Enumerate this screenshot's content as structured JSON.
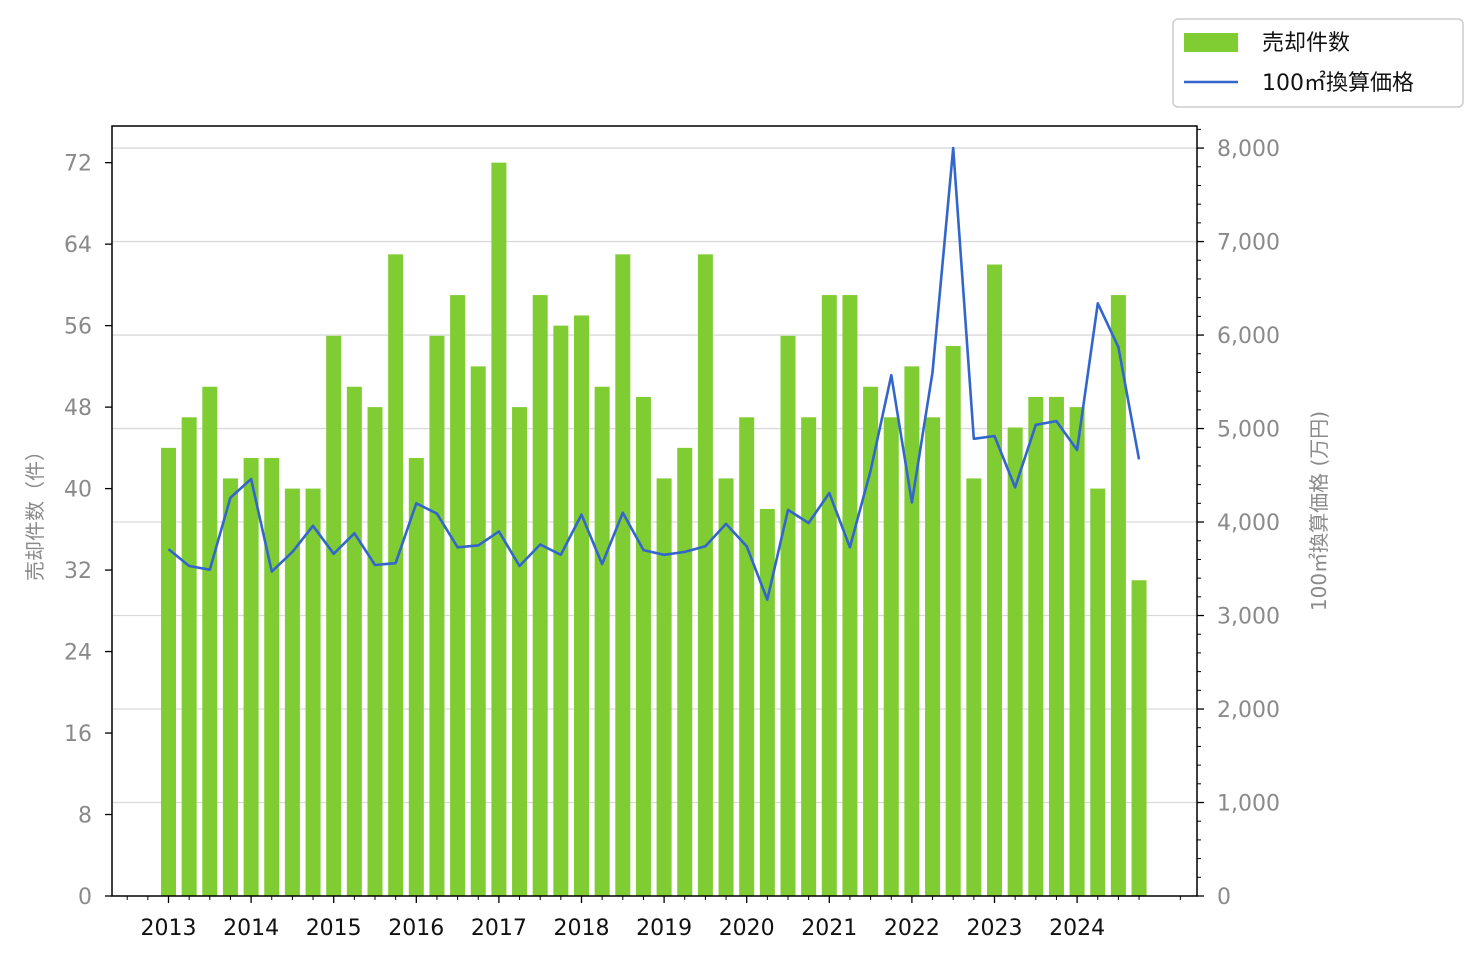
{
  "chart_data": {
    "type": "bar",
    "x_tick_labels": [
      "2013",
      "2014",
      "2015",
      "2016",
      "2017",
      "2018",
      "2019",
      "2020",
      "2021",
      "2022",
      "2023",
      "2024"
    ],
    "series": [
      {
        "name": "売却件数",
        "type": "bar",
        "axis": "left",
        "color": "#80cc33",
        "values": [
          44,
          47,
          50,
          41,
          43,
          43,
          40,
          40,
          55,
          50,
          48,
          63,
          43,
          55,
          59,
          52,
          72,
          48,
          59,
          56,
          57,
          50,
          63,
          49,
          41,
          44,
          63,
          41,
          47,
          38,
          55,
          47,
          59,
          59,
          50,
          47,
          52,
          47,
          54,
          41,
          62,
          46,
          49,
          49,
          48,
          40,
          59,
          31
        ]
      },
      {
        "name": "100㎡換算価格",
        "type": "line",
        "axis": "right",
        "color": "#3366cc",
        "values": [
          3710,
          3530,
          3490,
          4260,
          4460,
          3470,
          3680,
          3960,
          3660,
          3880,
          3540,
          3560,
          4200,
          4090,
          3730,
          3750,
          3900,
          3530,
          3760,
          3650,
          4080,
          3550,
          4100,
          3700,
          3650,
          3680,
          3740,
          3980,
          3740,
          3170,
          4130,
          3990,
          4310,
          3730,
          4550,
          5570,
          4210,
          5600,
          8000,
          4890,
          4920,
          4370,
          5040,
          5080,
          4770,
          6340,
          5870,
          4670
        ]
      }
    ],
    "periods_per_year": 4,
    "y_left": {
      "label": "売却件数（件）",
      "ticks": [
        0,
        8,
        16,
        24,
        32,
        40,
        48,
        56,
        64,
        72
      ],
      "min": 0,
      "max": 75.6
    },
    "y_right": {
      "label": "100㎡換算価格 (万円)",
      "ticks": [
        "0",
        "1,000",
        "2,000",
        "3,000",
        "4,000",
        "5,000",
        "6,000",
        "7,000",
        "8,000"
      ],
      "min": 0,
      "max": 8236
    },
    "grid": "horizontal (right-axis ticks)",
    "legend_placement": "top-right, outside plot"
  },
  "legend": {
    "bar_label": "売却件数",
    "line_label": "100㎡換算価格"
  },
  "axes": {
    "left_title": "売却件数（件）",
    "right_title": "100㎡換算価格 (万円)"
  }
}
